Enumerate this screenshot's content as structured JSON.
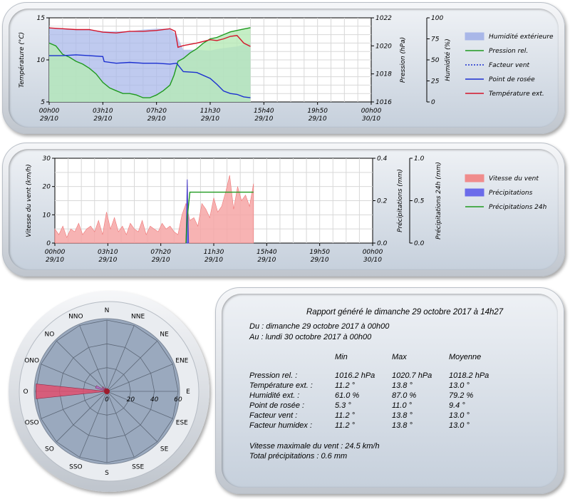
{
  "charts": [
    {
      "type": "line",
      "panel": "weather",
      "x_ticks": [
        {
          "t": "00h00",
          "d": "29/10"
        },
        {
          "t": "03h10",
          "d": "29/10"
        },
        {
          "t": "07h20",
          "d": "29/10"
        },
        {
          "t": "11h30",
          "d": "29/10"
        },
        {
          "t": "15h40",
          "d": "29/10"
        },
        {
          "t": "19h50",
          "d": "29/10"
        },
        {
          "t": "00h00",
          "d": "30/10"
        }
      ],
      "y_left": {
        "label": "Température (°C)",
        "ticks": [
          "5",
          "10",
          "15"
        ],
        "range": [
          5,
          15
        ]
      },
      "y_mid": {
        "label": "Pression (hPa)",
        "ticks": [
          "1016",
          "1018",
          "1020",
          "1022"
        ],
        "range": [
          1016,
          1022
        ]
      },
      "y_right": {
        "label": "Humidité (%)",
        "ticks": [
          "0",
          "25",
          "50",
          "75",
          "100"
        ],
        "range": [
          0,
          100
        ]
      },
      "x_range_hours": [
        0,
        24
      ],
      "legend": [
        {
          "name": "Humidité extérieure",
          "color": "#a9b7e8",
          "kind": "area"
        },
        {
          "name": "Pression rel.",
          "color": "#1f9a1f",
          "kind": "line"
        },
        {
          "name": "Facteur vent",
          "color": "#1b2fd0",
          "kind": "dotted"
        },
        {
          "name": "Point de rosée",
          "color": "#1b2fd0",
          "kind": "line"
        },
        {
          "name": "Température ext.",
          "color": "#d4142a",
          "kind": "line"
        }
      ],
      "series": [
        {
          "name": "Humidité extérieure",
          "axis": "humidity",
          "x": [
            0,
            1,
            2,
            3,
            3.5,
            4,
            5,
            6,
            7,
            8,
            9,
            9.5,
            10,
            11,
            12,
            12.5,
            13,
            14,
            14.5,
            15
          ],
          "y": [
            87,
            87,
            86,
            86,
            85,
            84,
            84,
            84,
            86,
            87,
            87,
            80,
            62,
            62,
            61,
            63,
            64,
            66,
            68,
            70
          ]
        },
        {
          "name": "Pression rel.",
          "axis": "pressure",
          "x": [
            0,
            0.5,
            1,
            1.5,
            2,
            2.5,
            3,
            3.5,
            4,
            4.5,
            5,
            5.5,
            6,
            6.5,
            7,
            7.5,
            8,
            8.5,
            9,
            9.3,
            9.6,
            10,
            10.5,
            11,
            11.5,
            12,
            12.5,
            13,
            13.5,
            14,
            14.5,
            15
          ],
          "y": [
            1020.2,
            1020.0,
            1019.4,
            1019.2,
            1018.9,
            1018.7,
            1018.4,
            1018.0,
            1017.4,
            1017.0,
            1016.8,
            1016.6,
            1016.6,
            1016.5,
            1016.3,
            1016.3,
            1016.5,
            1016.8,
            1017.2,
            1017.9,
            1018.9,
            1019.1,
            1019.5,
            1019.8,
            1020.2,
            1020.5,
            1020.6,
            1020.8,
            1021.0,
            1021.1,
            1021.2,
            1021.3
          ]
        },
        {
          "name": "Point de rosée",
          "axis": "temperature",
          "x": [
            0,
            1,
            2,
            3,
            4,
            4.1,
            5,
            6,
            7,
            8,
            9,
            9.5,
            10,
            11,
            12,
            12.5,
            13,
            13.5,
            14,
            14.5,
            15
          ],
          "y": [
            10.5,
            10.5,
            10.6,
            10.5,
            10.4,
            9.8,
            9.6,
            9.7,
            9.6,
            9.6,
            9.5,
            9.6,
            8.6,
            8.5,
            7.8,
            7.1,
            6.3,
            6.0,
            5.9,
            5.6,
            5.5
          ]
        },
        {
          "name": "Température ext.",
          "axis": "temperature",
          "x": [
            0,
            1,
            2,
            3,
            4,
            5,
            6,
            7,
            8,
            9,
            9.4,
            9.6,
            10,
            11,
            12,
            12.5,
            13,
            13.5,
            14,
            14.5,
            15
          ],
          "y": [
            13.8,
            13.7,
            13.6,
            13.6,
            13.3,
            13.2,
            13.4,
            13.4,
            13.5,
            13.7,
            13.4,
            11.5,
            11.7,
            12.0,
            12.4,
            12.3,
            12.5,
            12.8,
            12.9,
            12.0,
            11.6
          ]
        }
      ]
    },
    {
      "type": "area",
      "panel": "wind-rain",
      "x_ticks": [
        {
          "t": "00h00",
          "d": "29/10"
        },
        {
          "t": "03h10",
          "d": "29/10"
        },
        {
          "t": "07h20",
          "d": "29/10"
        },
        {
          "t": "11h30",
          "d": "29/10"
        },
        {
          "t": "15h40",
          "d": "29/10"
        },
        {
          "t": "19h50",
          "d": "29/10"
        },
        {
          "t": "00h00",
          "d": "30/10"
        }
      ],
      "y_left": {
        "label": "Vitesse du vent (km/h)",
        "ticks": [
          "0",
          "10",
          "20",
          "30"
        ],
        "range": [
          0,
          30
        ]
      },
      "y_mid": {
        "label": "Précipitations (mm)",
        "ticks": [
          "0.0",
          "0.2",
          "0.4"
        ],
        "range": [
          0,
          0.4
        ]
      },
      "y_right": {
        "label": "Précipitations 24h (mm)",
        "ticks": [
          "0.0",
          "0.5",
          "1.0"
        ],
        "range": [
          0,
          1
        ]
      },
      "x_range_hours": [
        0,
        24
      ],
      "legend": [
        {
          "name": "Vitesse du vent",
          "color": "#f08c8c",
          "kind": "area"
        },
        {
          "name": "Précipitations",
          "color": "#6b6bea",
          "kind": "area"
        },
        {
          "name": "Précipitations 24h",
          "color": "#1f9a1f",
          "kind": "line"
        }
      ],
      "series": [
        {
          "name": "Vitesse du vent",
          "axis": "wind",
          "x": [
            0,
            0.3,
            0.6,
            0.9,
            1.2,
            1.5,
            1.8,
            2.1,
            2.4,
            2.7,
            3.0,
            3.3,
            3.6,
            3.9,
            4.2,
            4.5,
            4.8,
            5.1,
            5.4,
            5.7,
            6.0,
            6.3,
            6.6,
            6.9,
            7.2,
            7.5,
            7.8,
            8.1,
            8.4,
            8.7,
            9.0,
            9.3,
            9.6,
            9.9,
            10.2,
            10.5,
            10.8,
            11.1,
            11.4,
            11.7,
            12.0,
            12.3,
            12.6,
            12.9,
            13.2,
            13.5,
            13.8,
            14.1,
            14.4,
            14.7,
            15.0
          ],
          "y": [
            5,
            3,
            6,
            2,
            5,
            4,
            7,
            3,
            5,
            6,
            4,
            8,
            3,
            11,
            5,
            9,
            4,
            6,
            3,
            7,
            5,
            4,
            8,
            3,
            6,
            5,
            4,
            7,
            5,
            6,
            4,
            3,
            10,
            14,
            8,
            9,
            6,
            14,
            12,
            9,
            16,
            11,
            13,
            18,
            24,
            12,
            20,
            15,
            17,
            13,
            21
          ]
        },
        {
          "name": "Précipitations",
          "axis": "rain",
          "x": [
            9.9,
            10.0,
            10.1
          ],
          "y": [
            0,
            0.3,
            0
          ]
        },
        {
          "name": "Précipitations 24h",
          "axis": "rain24",
          "x": [
            9.9,
            10.0,
            10.2,
            15.0
          ],
          "y": [
            0,
            0.3,
            0.6,
            0.6
          ]
        }
      ]
    },
    {
      "type": "polar",
      "panel": "wind-rose",
      "directions": [
        "N",
        "NNE",
        "NE",
        "ENE",
        "E",
        "ESE",
        "SE",
        "SSE",
        "S",
        "SSO",
        "SO",
        "OSO",
        "O",
        "ONO",
        "NO",
        "NNO"
      ],
      "radial_ticks": [
        "0",
        "20",
        "40",
        "60"
      ],
      "radial_range": [
        0,
        60
      ],
      "values": {
        "O": 60,
        "ONO": 10,
        "NO": 5,
        "NNO": 3,
        "OSO": 2
      }
    }
  ],
  "report": {
    "title": "Rapport généré le dimanche 29 octobre 2017 à 14h27",
    "from": "Du : dimanche 29 octobre 2017 à 00h00",
    "to": "Au : lundi 30 octobre 2017 à 00h00",
    "headers": [
      "Min",
      "Max",
      "Moyenne"
    ],
    "rows": [
      {
        "label": "Pression rel. :",
        "min": "1016.2 hPa",
        "max": "1020.7 hPa",
        "avg": "1018.2 hPa"
      },
      {
        "label": "Température ext. :",
        "min": "11.2 °",
        "max": "13.8 °",
        "avg": "13.0 °"
      },
      {
        "label": "Humidité ext. :",
        "min": "61.0 %",
        "max": "87.0 %",
        "avg": "79.2 %"
      },
      {
        "label": "Point de rosée :",
        "min": "5.3 °",
        "max": "11.0 °",
        "avg": "9.4 °"
      },
      {
        "label": "Facteur vent :",
        "min": "11.2 °",
        "max": "13.8 °",
        "avg": "13.0 °"
      },
      {
        "label": "Facteur humidex :",
        "min": "11.2 °",
        "max": "13.8 °",
        "avg": "13.0 °"
      }
    ],
    "max_wind": "Vitesse maximale du vent : 24.5 km/h",
    "total_rain": "Total précipitations : 0.6 mm"
  }
}
